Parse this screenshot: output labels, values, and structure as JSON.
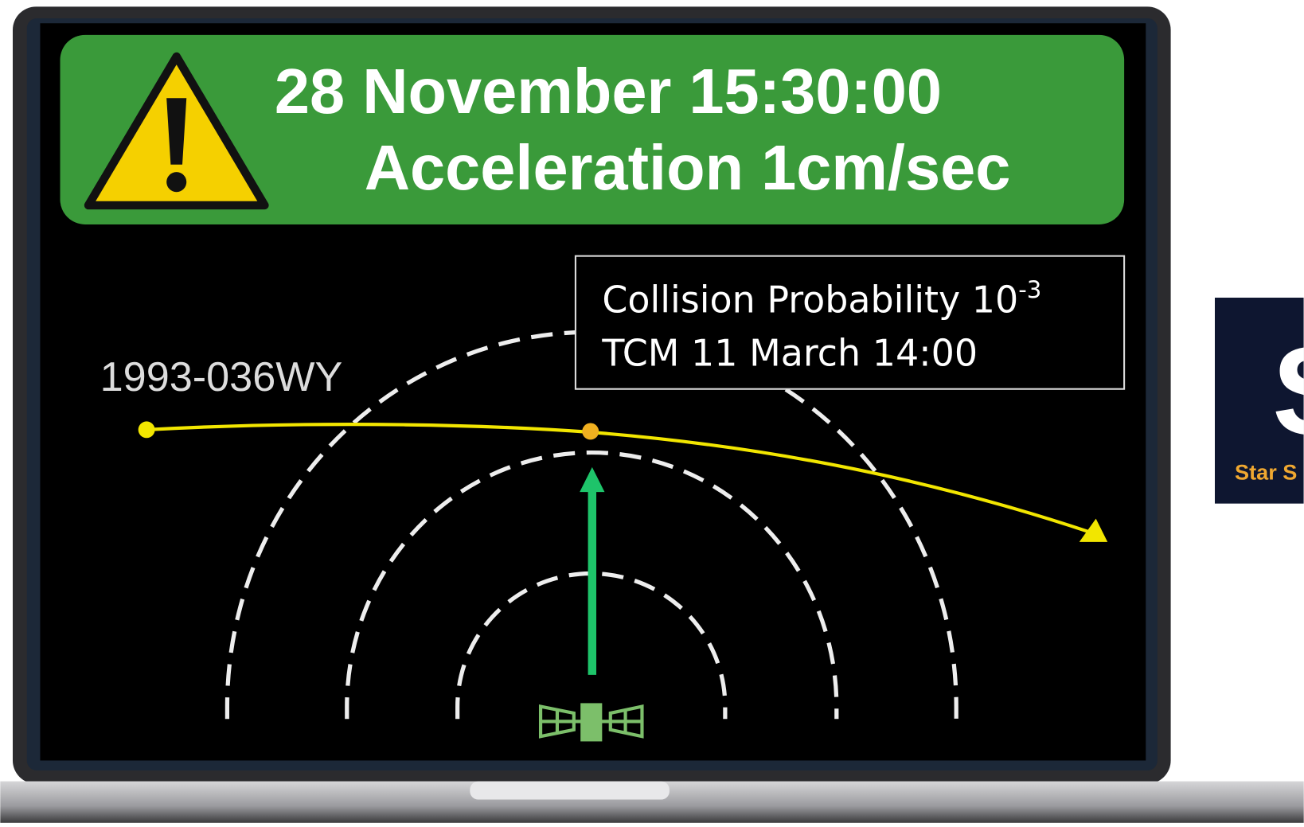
{
  "banner": {
    "line1": "28 November 15:30:00",
    "line2": "Acceleration 1cm/sec"
  },
  "info_box": {
    "line1": "Collision Probability 10",
    "line1_exponent": "-3",
    "line2": "TCM 11 March 14:00"
  },
  "object_label": "1993-036WY",
  "logo": {
    "letter": "S",
    "text": "Star S"
  }
}
